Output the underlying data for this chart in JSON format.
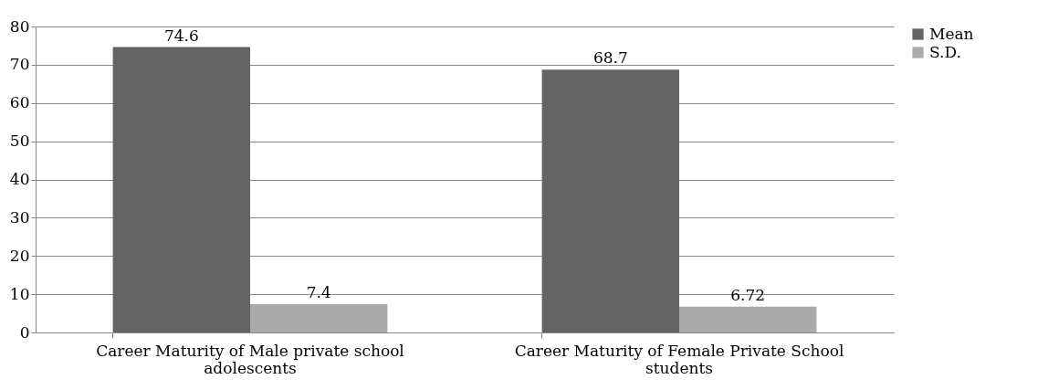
{
  "chart_data": {
    "type": "bar",
    "categories": [
      "Career Maturity of Male private school adolescents",
      "Career Maturity of Female Private School students"
    ],
    "series": [
      {
        "name": "Mean",
        "color": "#636363",
        "values": [
          74.6,
          68.7
        ]
      },
      {
        "name": "S.D.",
        "color": "#aaaaaa",
        "values": [
          7.4,
          6.72
        ]
      }
    ],
    "ylim": [
      0,
      80
    ],
    "yticks": [
      0,
      10,
      20,
      30,
      40,
      50,
      60,
      70,
      80
    ],
    "grid": "y",
    "legend": "right",
    "data_labels": true
  }
}
